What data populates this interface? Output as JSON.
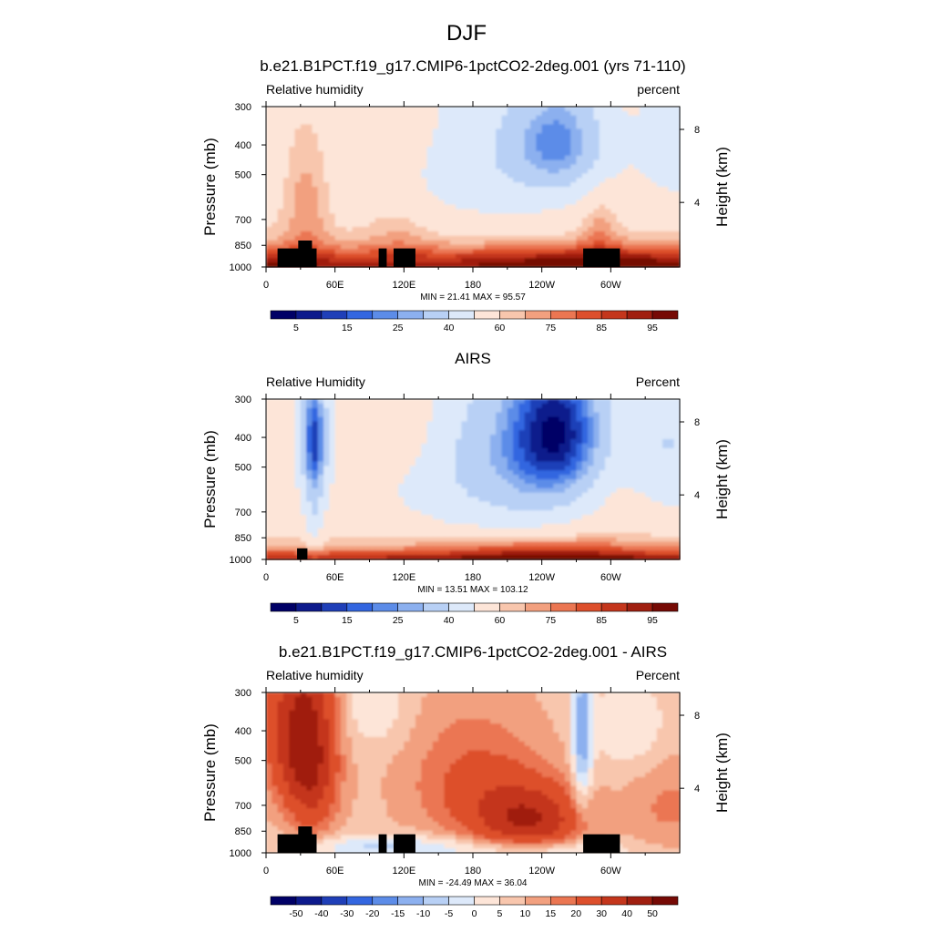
{
  "chart_data": {
    "type": "heatmap",
    "title": "DJF",
    "panels": [
      {
        "title": "b.e21.B1PCT.f19_g17.CMIP6-1pctCO2-2deg.001 (yrs 71-110)",
        "left_label": "Relative humidity",
        "right_label": "percent",
        "ylabel": "Pressure (mb)",
        "ylabel_right": "Height (km)",
        "y_ticks": [
          "300",
          "400",
          "500",
          "700",
          "850",
          "1000"
        ],
        "y_right_ticks": [
          "8",
          "4"
        ],
        "x_ticks": [
          "0",
          "60E",
          "120E",
          "180",
          "120W",
          "60W"
        ],
        "stats": "MIN = 21.41 MAX = 95.57",
        "min": 21.41,
        "max": 95.57,
        "colorbar_labels": [
          "5",
          "15",
          "25",
          "40",
          "60",
          "75",
          "85",
          "95"
        ],
        "field": "model"
      },
      {
        "title": "AIRS",
        "left_label": "Relative Humidity",
        "right_label": "Percent",
        "ylabel": "Pressure (mb)",
        "ylabel_right": "Height (km)",
        "y_ticks": [
          "300",
          "400",
          "500",
          "700",
          "850",
          "1000"
        ],
        "y_right_ticks": [
          "8",
          "4"
        ],
        "x_ticks": [
          "0",
          "60E",
          "120E",
          "180",
          "120W",
          "60W"
        ],
        "stats": "MIN = 13.51 MAX = 103.12",
        "min": 13.51,
        "max": 103.12,
        "colorbar_labels": [
          "5",
          "15",
          "25",
          "40",
          "60",
          "75",
          "85",
          "95"
        ],
        "field": "obs"
      },
      {
        "title": "b.e21.B1PCT.f19_g17.CMIP6-1pctCO2-2deg.001 - AIRS",
        "left_label": "Relative humidity",
        "right_label": "Percent",
        "ylabel": "Pressure (mb)",
        "ylabel_right": "Height (km)",
        "y_ticks": [
          "300",
          "400",
          "500",
          "700",
          "850",
          "1000"
        ],
        "y_right_ticks": [
          "8",
          "4"
        ],
        "x_ticks": [
          "0",
          "60E",
          "120E",
          "180",
          "120W",
          "60W"
        ],
        "stats": "MIN = -24.49 MAX = 36.04",
        "min": -24.49,
        "max": 36.04,
        "colorbar_labels": [
          "-50",
          "-40",
          "-30",
          "-20",
          "-15",
          "-10",
          "-5",
          "0",
          "5",
          "10",
          "15",
          "20",
          "30",
          "40",
          "50"
        ],
        "field": "diff"
      }
    ],
    "palette": [
      "#000066",
      "#0d1a8c",
      "#1f3fb8",
      "#3366e0",
      "#5c8ce8",
      "#8cb0ef",
      "#b8d0f5",
      "#dde9fa",
      "#fde5d8",
      "#f8c6ad",
      "#f2a07f",
      "#eb7652",
      "#dd4f2c",
      "#c4361c",
      "#a01f10",
      "#760a05"
    ],
    "diff_levels": [
      -50,
      -40,
      -30,
      -20,
      -15,
      -10,
      -5,
      0,
      5,
      10,
      15,
      20,
      30,
      40,
      50
    ],
    "abs_levels": [
      5,
      10,
      15,
      20,
      25,
      30,
      40,
      50,
      60,
      65,
      70,
      75,
      80,
      85,
      90,
      95
    ]
  }
}
